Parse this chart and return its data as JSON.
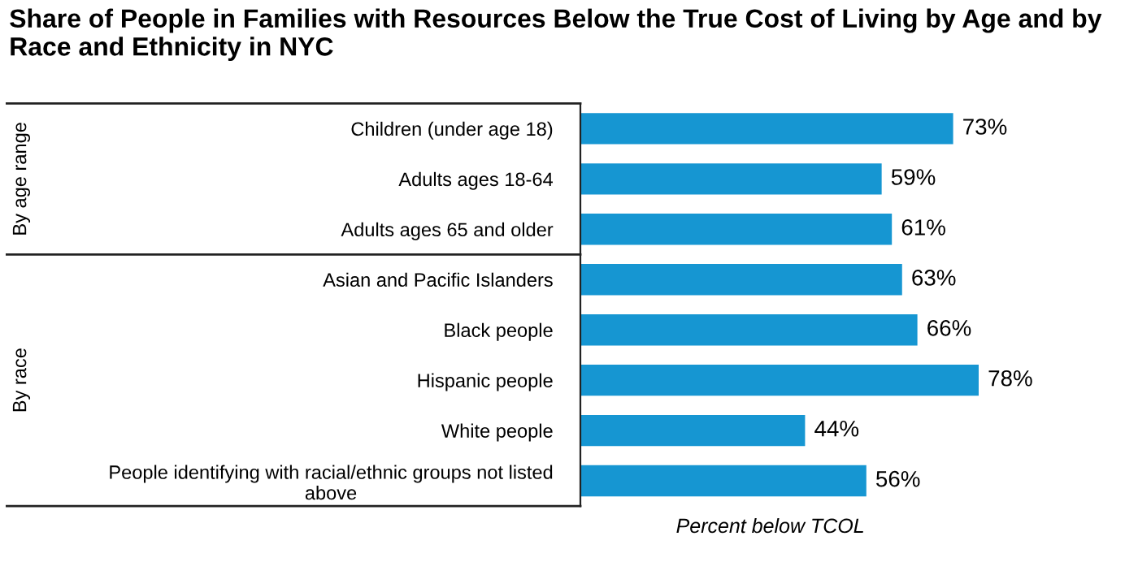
{
  "chart_data": {
    "type": "bar",
    "orientation": "horizontal",
    "title": "Share of People in Families with Resources Below the True Cost of Living by Age and by Race and Ethnicity in NYC",
    "xlabel": "Percent below TCOL",
    "categories": [
      "Children (under age 18)",
      "Adults ages 18-64",
      "Adults ages 65 and older",
      "Asian and Pacific Islanders",
      "Black people",
      "Hispanic people",
      "White people",
      "People identifying with racial/ethnic groups not listed\nabove"
    ],
    "values": [
      73,
      59,
      61,
      63,
      66,
      78,
      44,
      56
    ],
    "color": "#1696d2",
    "value_labels": [
      "73%",
      "59%",
      "61%",
      "63%",
      "66%",
      "78%",
      "44%",
      "56%"
    ],
    "annotations": [
      "By age range",
      "By race"
    ],
    "tick_labels": "y",
    "grid": false,
    "legend": false
  }
}
